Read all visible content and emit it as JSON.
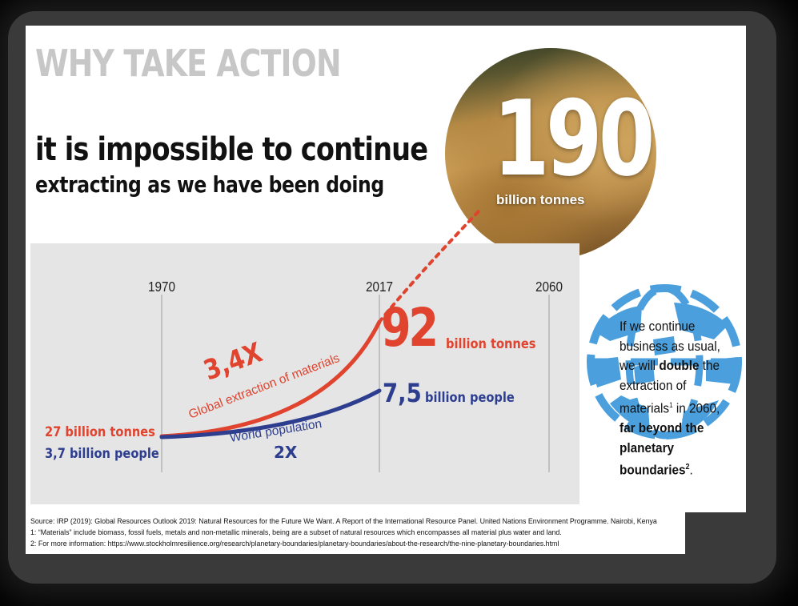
{
  "slide": {
    "section_title": "WHY TAKE ACTION",
    "headline": "it is impossible to continue",
    "subheadline": "extracting as we have been doing",
    "projection": {
      "value": "190",
      "unit": "billion tonnes"
    },
    "side_note": {
      "part1": "If we continue business as usual, we will ",
      "bold1": "double",
      "part2": " the extraction of materials",
      "sup1": "1",
      "part3": " in 2060, ",
      "bold2": "far beyond the planetary boundaries",
      "sup2": "2",
      "part4": "."
    },
    "footnotes": [
      "Source: IRP (2019): Global Resources Outlook 2019: Natural Resources for the Future We Want. A Report of the International Resource Panel. United Nations Environment Programme. Nairobi, Kenya",
      "1: “Materials” include biomass, fossil fuels, metals and non-metallic minerals, being are a subset of natural resources which encompasses all material plus water and land.",
      "2: For more information: https://www.stockholmresilience.org/research/planetary-boundaries/planetary-boundaries/about-the-research/the-nine-planetary-boundaries.html"
    ]
  },
  "chart_data": {
    "type": "line",
    "x_ticks": [
      "1970",
      "2017",
      "2060"
    ],
    "series": [
      {
        "name": "Global extraction of materials",
        "color": "#e0432e",
        "x": [
          1970,
          2017
        ],
        "values": [
          27,
          92
        ],
        "unit": "billion tonnes",
        "start_label": "27 billion tonnes",
        "end_value": "92",
        "end_unit": "billion tonnes",
        "multiplier": "3,4X",
        "projection": {
          "x": 2060,
          "value": 190
        }
      },
      {
        "name": "World population",
        "color": "#2e3e8f",
        "x": [
          1970,
          2017
        ],
        "values": [
          3.7,
          7.5
        ],
        "unit": "billion people",
        "start_label": "3,7 billion people",
        "end_value": "7,5",
        "end_unit": "billion people",
        "multiplier": "2X"
      }
    ]
  }
}
